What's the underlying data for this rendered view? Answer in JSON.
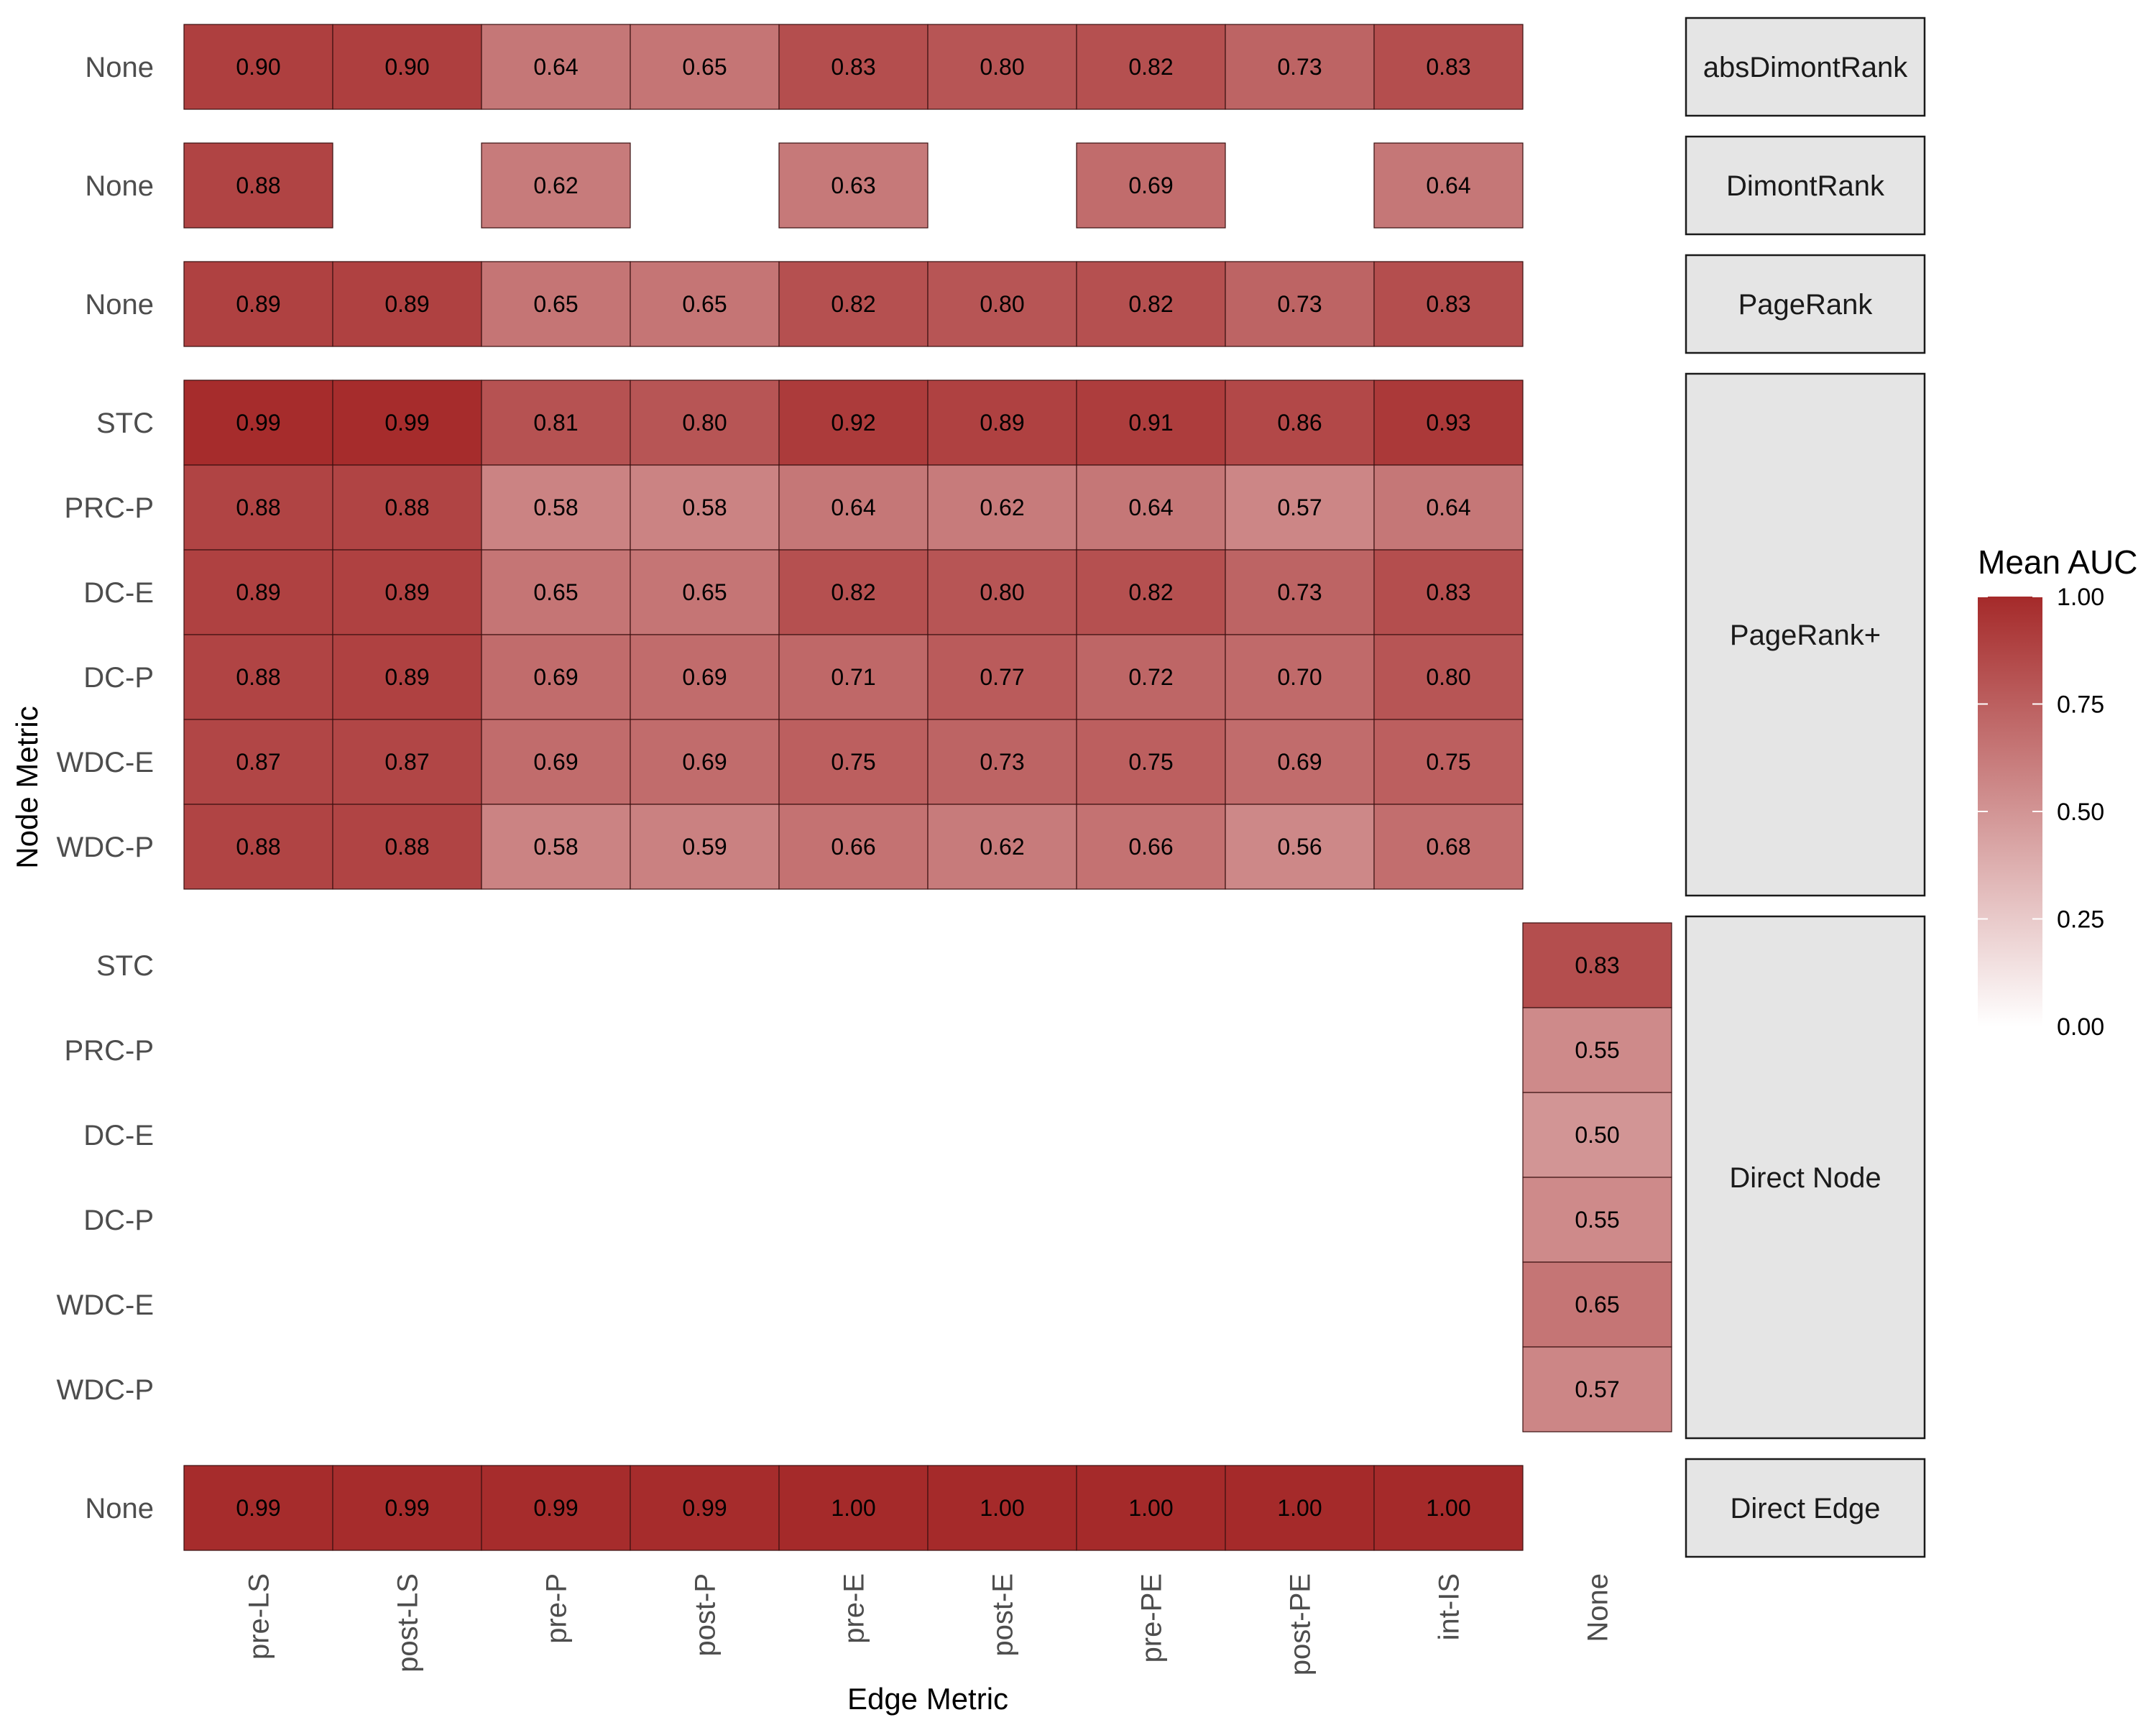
{
  "chart_data": {
    "type": "heatmap",
    "xlabel": "Edge Metric",
    "ylabel": "Node Metric",
    "x_categories": [
      "pre-LS",
      "post-LS",
      "pre-P",
      "post-P",
      "pre-E",
      "post-E",
      "pre-PE",
      "post-PE",
      "int-IS",
      "None"
    ],
    "value_format": "2 decimals",
    "color_scale": {
      "title": "Mean AUC",
      "low_color": "#ffffff",
      "high_color": "#a52a2a",
      "limits": [
        0,
        1
      ],
      "breaks": [
        "0.00",
        "0.25",
        "0.50",
        "0.75",
        "1.00"
      ]
    },
    "facets": [
      {
        "name": "absDimontRank",
        "rows": [
          {
            "node_metric": "None",
            "values": [
              0.9,
              0.9,
              0.64,
              0.65,
              0.83,
              0.8,
              0.82,
              0.73,
              0.83,
              null
            ]
          }
        ]
      },
      {
        "name": "DimontRank",
        "rows": [
          {
            "node_metric": "None",
            "values": [
              0.88,
              null,
              0.62,
              null,
              0.63,
              null,
              0.69,
              null,
              0.64,
              null
            ]
          }
        ]
      },
      {
        "name": "PageRank",
        "rows": [
          {
            "node_metric": "None",
            "values": [
              0.89,
              0.89,
              0.65,
              0.65,
              0.82,
              0.8,
              0.82,
              0.73,
              0.83,
              null
            ]
          }
        ]
      },
      {
        "name": "PageRank+",
        "rows": [
          {
            "node_metric": "STC",
            "values": [
              0.99,
              0.99,
              0.81,
              0.8,
              0.92,
              0.89,
              0.91,
              0.86,
              0.93,
              null
            ]
          },
          {
            "node_metric": "PRC-P",
            "values": [
              0.88,
              0.88,
              0.58,
              0.58,
              0.64,
              0.62,
              0.64,
              0.57,
              0.64,
              null
            ]
          },
          {
            "node_metric": "DC-E",
            "values": [
              0.89,
              0.89,
              0.65,
              0.65,
              0.82,
              0.8,
              0.82,
              0.73,
              0.83,
              null
            ]
          },
          {
            "node_metric": "DC-P",
            "values": [
              0.88,
              0.89,
              0.69,
              0.69,
              0.71,
              0.77,
              0.72,
              0.7,
              0.8,
              null
            ]
          },
          {
            "node_metric": "WDC-E",
            "values": [
              0.87,
              0.87,
              0.69,
              0.69,
              0.75,
              0.73,
              0.75,
              0.69,
              0.75,
              null
            ]
          },
          {
            "node_metric": "WDC-P",
            "values": [
              0.88,
              0.88,
              0.58,
              0.59,
              0.66,
              0.62,
              0.66,
              0.56,
              0.68,
              null
            ]
          }
        ]
      },
      {
        "name": "Direct Node",
        "rows": [
          {
            "node_metric": "STC",
            "values": [
              null,
              null,
              null,
              null,
              null,
              null,
              null,
              null,
              null,
              0.83
            ]
          },
          {
            "node_metric": "PRC-P",
            "values": [
              null,
              null,
              null,
              null,
              null,
              null,
              null,
              null,
              null,
              0.55
            ]
          },
          {
            "node_metric": "DC-E",
            "values": [
              null,
              null,
              null,
              null,
              null,
              null,
              null,
              null,
              null,
              0.5
            ]
          },
          {
            "node_metric": "DC-P",
            "values": [
              null,
              null,
              null,
              null,
              null,
              null,
              null,
              null,
              null,
              0.55
            ]
          },
          {
            "node_metric": "WDC-E",
            "values": [
              null,
              null,
              null,
              null,
              null,
              null,
              null,
              null,
              null,
              0.65
            ]
          },
          {
            "node_metric": "WDC-P",
            "values": [
              null,
              null,
              null,
              null,
              null,
              null,
              null,
              null,
              null,
              0.57
            ]
          }
        ]
      },
      {
        "name": "Direct Edge",
        "rows": [
          {
            "node_metric": "None",
            "values": [
              0.99,
              0.99,
              0.99,
              0.99,
              1.0,
              1.0,
              1.0,
              1.0,
              1.0,
              null
            ]
          }
        ]
      }
    ],
    "facet_strip_color": "#e5e5e5"
  }
}
